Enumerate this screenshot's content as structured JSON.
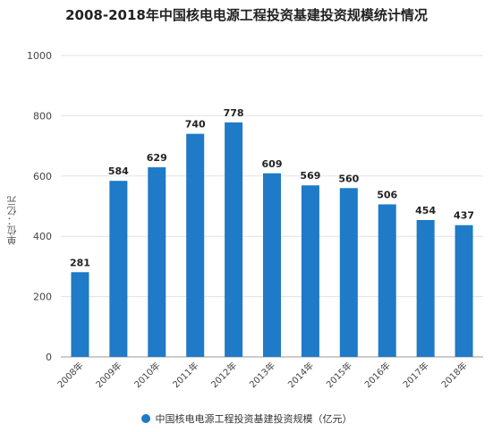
{
  "chart_data": {
    "type": "bar",
    "title": "2008-2018年中国核电电源工程投资基建投资规模统计情况",
    "ylabel": "单位：亿元",
    "categories": [
      "2008年",
      "2009年",
      "2010年",
      "2011年",
      "2012年",
      "2013年",
      "2014年",
      "2015年",
      "2016年",
      "2017年",
      "2018年"
    ],
    "series": [
      {
        "name": "中国核电电源工程投资基建投资规模（亿元）",
        "values": [
          281,
          584,
          629,
          740,
          778,
          609,
          569,
          560,
          506,
          454,
          437
        ],
        "color": "#1f7ac7"
      }
    ],
    "ylim": [
      0,
      1000
    ],
    "yticks": [
      0,
      200,
      400,
      600,
      800,
      1000
    ],
    "grid": true,
    "legend_position": "bottom-center"
  }
}
